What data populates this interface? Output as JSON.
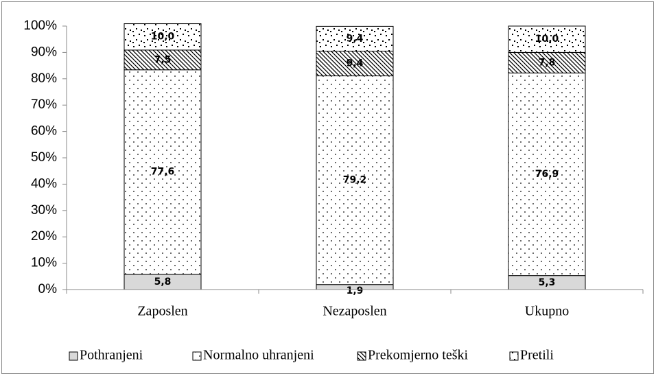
{
  "chart_data": {
    "type": "stacked_bar",
    "categories": [
      "Zaposlen",
      "Nezaposlen",
      "Ukupno"
    ],
    "series": [
      {
        "name": "Pothranjeni",
        "color": "#d9d9d9",
        "pattern": "solid",
        "values": [
          5.8,
          1.9,
          5.3
        ],
        "value_labels": [
          "5,8",
          "1,9",
          "5,3"
        ]
      },
      {
        "name": "Normalno uhranjeni",
        "color": "#ffffff",
        "pattern": "dots",
        "values": [
          77.6,
          79.2,
          76.9
        ],
        "value_labels": [
          "77,6",
          "79,2",
          "76,9"
        ]
      },
      {
        "name": "Prekomjerno teški",
        "color": "#ffffff",
        "pattern": "hatch",
        "values": [
          7.5,
          9.4,
          7.8
        ],
        "value_labels": [
          "7,5",
          "9,4",
          "7,8"
        ]
      },
      {
        "name": "Pretili",
        "color": "#ffffff",
        "pattern": "confetti",
        "values": [
          10.0,
          9.4,
          10.0
        ],
        "value_labels": [
          "10,0",
          "9,4",
          "10,0"
        ]
      }
    ],
    "ylim": [
      0,
      100
    ],
    "yticks": [
      {
        "value": 0,
        "label": "0%"
      },
      {
        "value": 10,
        "label": "10%"
      },
      {
        "value": 20,
        "label": "20%"
      },
      {
        "value": 30,
        "label": "30%"
      },
      {
        "value": 40,
        "label": "40%"
      },
      {
        "value": 50,
        "label": "50%"
      },
      {
        "value": 60,
        "label": "60%"
      },
      {
        "value": 70,
        "label": "70%"
      },
      {
        "value": 80,
        "label": "80%"
      },
      {
        "value": 90,
        "label": "90%"
      },
      {
        "value": 100,
        "label": "100%"
      }
    ],
    "grid": false,
    "legend": "bottom"
  }
}
